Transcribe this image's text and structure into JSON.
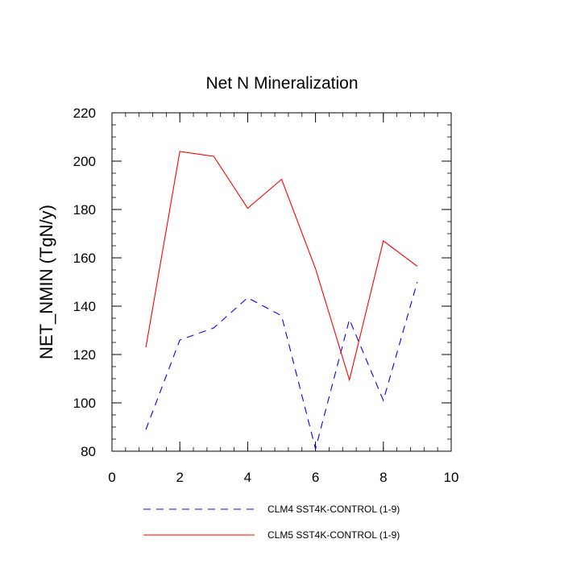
{
  "chart_data": {
    "type": "line",
    "title": "Net N Mineralization",
    "xlabel": "",
    "ylabel": "NET_NMIN  (TgN/y)",
    "xlim": [
      0,
      10
    ],
    "ylim": [
      80,
      220
    ],
    "xticks": [
      0,
      2,
      4,
      6,
      8,
      10
    ],
    "yticks": [
      80,
      100,
      120,
      140,
      160,
      180,
      200,
      220
    ],
    "x": [
      1,
      2,
      3,
      4,
      5,
      6,
      7,
      8,
      9
    ],
    "series": [
      {
        "name": "CLM4 SST4K-CONTROL (1-9)",
        "color": "#0000ff",
        "dash": "dashed",
        "values": [
          89,
          126,
          131,
          143.5,
          136,
          81,
          134.5,
          101,
          150
        ]
      },
      {
        "name": "CLM5 SST4K-CONTROL (1-9)",
        "color": "#ff0000",
        "dash": "solid",
        "values": [
          123,
          204,
          202,
          180.5,
          192.5,
          155.5,
          109.5,
          167,
          156.5
        ]
      }
    ],
    "grid": false,
    "legend_position": "bottom"
  }
}
